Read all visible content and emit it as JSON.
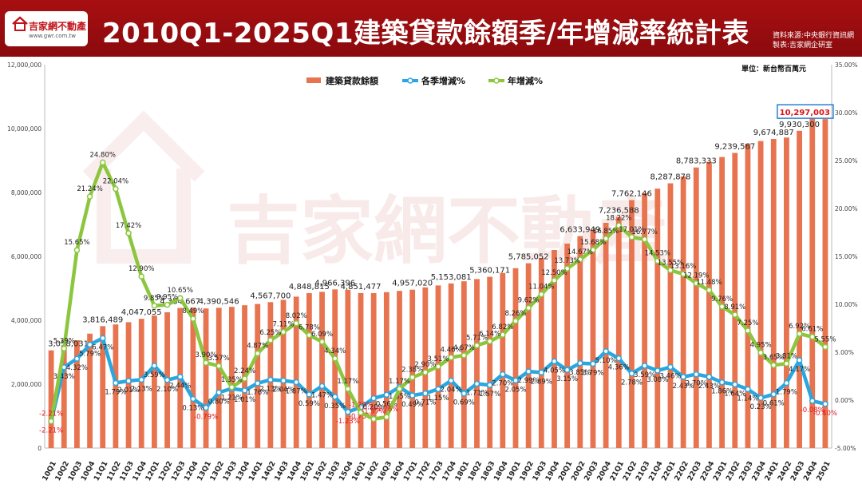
{
  "header": {
    "title": "2010Q1-2025Q1建築貸款餘額季/年增減率統計表",
    "logo_name": "吉家網不動產",
    "logo_url": "www.gwr.com.tw",
    "source_line1": "資料來源:中央銀行資訊網",
    "source_line2": "製表:吉家網企研室"
  },
  "watermark": "吉家網不動產",
  "chart_data": {
    "type": "bar+line",
    "unit_note": "單位：新台幣百萬元",
    "categories": [
      "10Q1",
      "10Q2",
      "10Q3",
      "10Q4",
      "11Q1",
      "11Q2",
      "11Q3",
      "11Q4",
      "12Q1",
      "12Q2",
      "12Q3",
      "12Q4",
      "13Q1",
      "13Q2",
      "13Q3",
      "13Q4",
      "14Q1",
      "14Q2",
      "14Q3",
      "14Q4",
      "15Q1",
      "15Q2",
      "15Q3",
      "15Q4",
      "16Q1",
      "16Q2",
      "16Q3",
      "16Q4",
      "17Q1",
      "17Q2",
      "17Q3",
      "17Q4",
      "18Q1",
      "18Q2",
      "18Q3",
      "18Q4",
      "19Q1",
      "19Q2",
      "19Q3",
      "19Q4",
      "20Q1",
      "20Q2",
      "20Q3",
      "20Q4",
      "21Q1",
      "21Q2",
      "21Q3",
      "21Q4",
      "22Q1",
      "22Q2",
      "22Q3",
      "22Q4",
      "23Q1",
      "23Q2",
      "23Q3",
      "23Q4",
      "24Q1",
      "24Q2",
      "24Q3",
      "24Q4",
      "25Q1"
    ],
    "left_axis": {
      "ylim": [
        0,
        12000000
      ],
      "ticks": [
        "0",
        "2,000,000",
        "4,000,000",
        "6,000,000",
        "8,000,000",
        "10,000,000",
        "12,000,000"
      ]
    },
    "right_axis": {
      "ylim": [
        -5,
        35
      ],
      "ticks": [
        "-5.00%",
        "0.00%",
        "5.00%",
        "10.00%",
        "15.00%",
        "20.00%",
        "25.00%",
        "30.00%",
        "35.00%"
      ]
    },
    "series": [
      {
        "name": "建築貸款餘額",
        "kind": "bar",
        "axis": "left",
        "color": "#e8734f",
        "values": [
          3058031,
          3190000,
          3375000,
          3582000,
          3816489,
          3870000,
          3940000,
          4047055,
          4148000,
          4250000,
          4384667,
          4398000,
          4370000,
          4390546,
          4420000,
          4470000,
          4510000,
          4567700,
          4640000,
          4740000,
          4848815,
          4890000,
          4966396,
          4955000,
          4851477,
          4850000,
          4880000,
          4920000,
          4957020,
          5030000,
          5090000,
          5153081,
          5220000,
          5290000,
          5360171,
          5480000,
          5630000,
          5785052,
          5950000,
          6200000,
          6400000,
          6633949,
          6840000,
          7050000,
          7236588,
          7762146,
          7980000,
          8120000,
          8287878,
          8500000,
          8783333,
          8960000,
          9110000,
          9239567,
          9530000,
          9610000,
          9674887,
          9720000,
          9930300,
          10310000,
          10297003
        ],
        "labels": [
          {
            "i": 0,
            "text": "3,058,031"
          },
          {
            "i": 4,
            "text": "3,816,489"
          },
          {
            "i": 7,
            "text": "4,047,055"
          },
          {
            "i": 10,
            "text": "4,384,667"
          },
          {
            "i": 13,
            "text": "4,390,546"
          },
          {
            "i": 17,
            "text": "4,567,700"
          },
          {
            "i": 20,
            "text": "4,848,815"
          },
          {
            "i": 22,
            "text": "4,966,396"
          },
          {
            "i": 24,
            "text": "4,851,477"
          },
          {
            "i": 28,
            "text": "4,957,020"
          },
          {
            "i": 31,
            "text": "5,153,081"
          },
          {
            "i": 34,
            "text": "5,360,171"
          },
          {
            "i": 37,
            "text": "5,785,052"
          },
          {
            "i": 41,
            "text": "6,633,949"
          },
          {
            "i": 44,
            "text": "7,236,588"
          },
          {
            "i": 45,
            "text": "7,762,146"
          },
          {
            "i": 48,
            "text": "8,287,878"
          },
          {
            "i": 50,
            "text": "8,783,333"
          },
          {
            "i": 53,
            "text": "9,239,567"
          },
          {
            "i": 56,
            "text": "9,674,887"
          },
          {
            "i": 58,
            "text": "9,930,300"
          },
          {
            "i": 60,
            "text": "10,297,003"
          }
        ]
      },
      {
        "name": "各季增減%",
        "kind": "line",
        "axis": "right",
        "color": "#2aa7df",
        "values": [
          -2.21,
          3.43,
          4.32,
          5.79,
          6.47,
          1.79,
          2.01,
          2.13,
          3.59,
          2.1,
          2.44,
          0.13,
          -0.79,
          0.8,
          1.21,
          1.01,
          1.76,
          2.13,
          2.04,
          1.87,
          0.59,
          1.47,
          0.35,
          -1.23,
          -0.73,
          0.2,
          0.56,
          1.35,
          0.49,
          0.71,
          1.15,
          2.04,
          0.69,
          1.71,
          1.57,
          2.7,
          2.05,
          2.99,
          2.89,
          4.05,
          3.15,
          3.85,
          3.79,
          5.1,
          4.36,
          2.78,
          3.59,
          3.08,
          3.46,
          2.43,
          2.7,
          2.43,
          1.86,
          1.64,
          1.14,
          0.23,
          0.61,
          1.79,
          4.17,
          -0.08,
          -0.4
        ],
        "labels": [
          "-2.21%",
          "3.43%",
          "4.32%",
          "5.79%",
          "6.47%",
          "1.79%",
          "2.01%",
          "2.13%",
          "3.59%",
          "2.10%",
          "2.44%",
          "0.13%",
          "-0.79%",
          "0.80%",
          "1.21%",
          "1.01%",
          "1.76%",
          "2.13%",
          "2.04%",
          "1.87%",
          "0.59%",
          "1.47%",
          "0.35%",
          "-1.23%",
          "-0.73%",
          "0.20%",
          "0.56%",
          "1.35%",
          "0.49%",
          "0.71%",
          "1.15%",
          "2.04%",
          "0.69%",
          "1.71%",
          "1.57%",
          "2.70%",
          "2.05%",
          "2.99%",
          "2.89%",
          "4.05%",
          "3.15%",
          "3.85%",
          "3.79%",
          "5.10%",
          "4.36%",
          "2.78%",
          "3.59%",
          "3.08%",
          "3.46%",
          "2.43%",
          "2.70%",
          "2.43%",
          "1.86%",
          "1.64%",
          "1.14%",
          "0.23%",
          "0.61%",
          "1.79%",
          "4.17%",
          "-0.08%",
          "-0.40%"
        ]
      },
      {
        "name": "年增減%",
        "kind": "line",
        "axis": "right",
        "color": "#8cc63f",
        "values": [
          -2.21,
          5.39,
          15.65,
          21.24,
          24.8,
          22.04,
          17.42,
          12.9,
          9.85,
          9.95,
          10.65,
          8.49,
          3.9,
          3.57,
          1.35,
          2.24,
          4.87,
          6.25,
          7.11,
          8.02,
          6.78,
          6.09,
          4.34,
          1.17,
          -1.29,
          -1.97,
          -1.76,
          1.17,
          2.38,
          2.9,
          3.51,
          4.46,
          4.67,
          5.71,
          6.14,
          6.82,
          8.26,
          9.62,
          11.04,
          12.5,
          13.73,
          14.67,
          15.68,
          16.85,
          18.22,
          17.01,
          16.77,
          14.53,
          13.55,
          13.16,
          12.19,
          11.48,
          9.76,
          8.91,
          7.25,
          4.95,
          3.65,
          3.81,
          6.92,
          6.61,
          5.55
        ],
        "labels": [
          "-2.21%",
          "5.39%",
          "15.65%",
          "21.24%",
          "24.80%",
          "22.04%",
          "17.42%",
          "12.90%",
          "9.85%",
          "9.95%",
          "10.65%",
          "8.49%",
          "3.90%",
          "3.57%",
          "1.35%",
          "2.24%",
          "4.87%",
          "6.25%",
          "7.11%",
          "8.02%",
          "6.78%",
          "6.09%",
          "4.34%",
          "1.17%",
          "-1.29%",
          "-1.97%",
          "-1.76%",
          "1.17%",
          "2.38%",
          "2.90%",
          "3.51%",
          "4.46%",
          "4.67%",
          "5.71%",
          "6.14%",
          "6.82%",
          "8.26%",
          "9.62%",
          "11.04%",
          "12.50%",
          "13.73%",
          "14.67%",
          "15.68%",
          "16.85%",
          "18.22%",
          "17.01%",
          "16.77%",
          "14.53%",
          "13.55%",
          "13.16%",
          "12.19%",
          "11.48%",
          "9.76%",
          "8.91%",
          "7.25%",
          "4.95%",
          "3.65%",
          "3.81%",
          "6.92%",
          "6.61%",
          "5.55%"
        ]
      }
    ],
    "legend_position": "top-center",
    "grid": false
  }
}
